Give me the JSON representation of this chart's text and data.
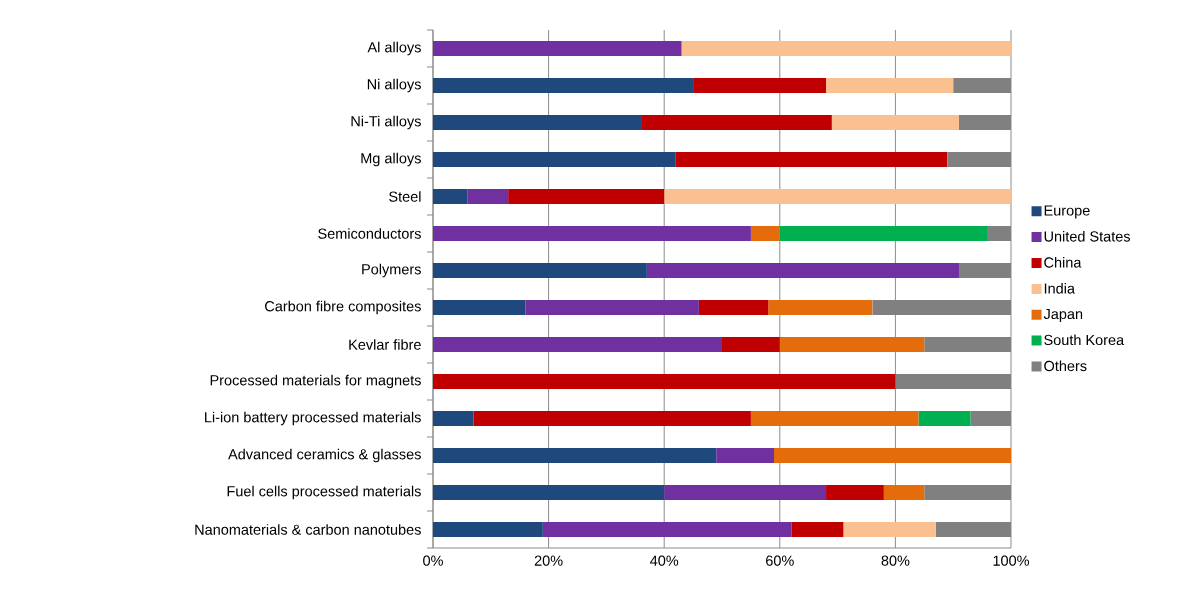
{
  "chart_data": {
    "type": "bar",
    "orientation": "horizontal",
    "stacked": true,
    "categories": [
      "Al alloys",
      "Ni alloys",
      "Ni-Ti alloys",
      "Mg alloys",
      "Steel",
      "Semiconductors",
      "Polymers",
      "Carbon fibre composites",
      "Kevlar fibre",
      "Processed materials for magnets",
      "Li-ion battery processed materials",
      "Advanced ceramics & glasses",
      "Fuel cells processed materials",
      "Nanomaterials & carbon nanotubes"
    ],
    "series": [
      {
        "name": "Europe",
        "color": "#1f497d",
        "values": [
          0,
          45,
          36,
          42,
          6,
          0,
          37,
          16,
          0,
          0,
          7,
          49,
          40,
          19
        ]
      },
      {
        "name": "United States",
        "color": "#7030a0",
        "values": [
          43,
          0,
          0,
          0,
          7,
          55,
          54,
          30,
          50,
          0,
          0,
          10,
          28,
          43
        ]
      },
      {
        "name": "China",
        "color": "#c00000",
        "values": [
          0,
          23,
          33,
          47,
          27,
          0,
          0,
          12,
          10,
          80,
          48,
          0,
          10,
          9
        ]
      },
      {
        "name": "India",
        "color": "#fac090",
        "values": [
          57,
          22,
          22,
          0,
          60,
          0,
          0,
          0,
          0,
          0,
          0,
          0,
          0,
          16
        ]
      },
      {
        "name": "Japan",
        "color": "#e46c0a",
        "values": [
          0,
          0,
          0,
          0,
          0,
          5,
          0,
          18,
          25,
          0,
          29,
          41,
          7,
          0
        ]
      },
      {
        "name": "South Korea",
        "color": "#00b050",
        "values": [
          0,
          0,
          0,
          0,
          0,
          36,
          0,
          0,
          0,
          0,
          9,
          0,
          0,
          0
        ]
      },
      {
        "name": "Others",
        "color": "#808080",
        "values": [
          0,
          10,
          9,
          11,
          0,
          4,
          9,
          24,
          15,
          20,
          7,
          0,
          15,
          13
        ]
      }
    ],
    "xlim": [
      0,
      100
    ],
    "xticks": [
      {
        "value": 0,
        "label": "0%"
      },
      {
        "value": 20,
        "label": "20%"
      },
      {
        "value": 40,
        "label": "40%"
      },
      {
        "value": 60,
        "label": "60%"
      },
      {
        "value": 80,
        "label": "80%"
      },
      {
        "value": 100,
        "label": "100%"
      }
    ],
    "grid": "x",
    "legend": "right"
  }
}
